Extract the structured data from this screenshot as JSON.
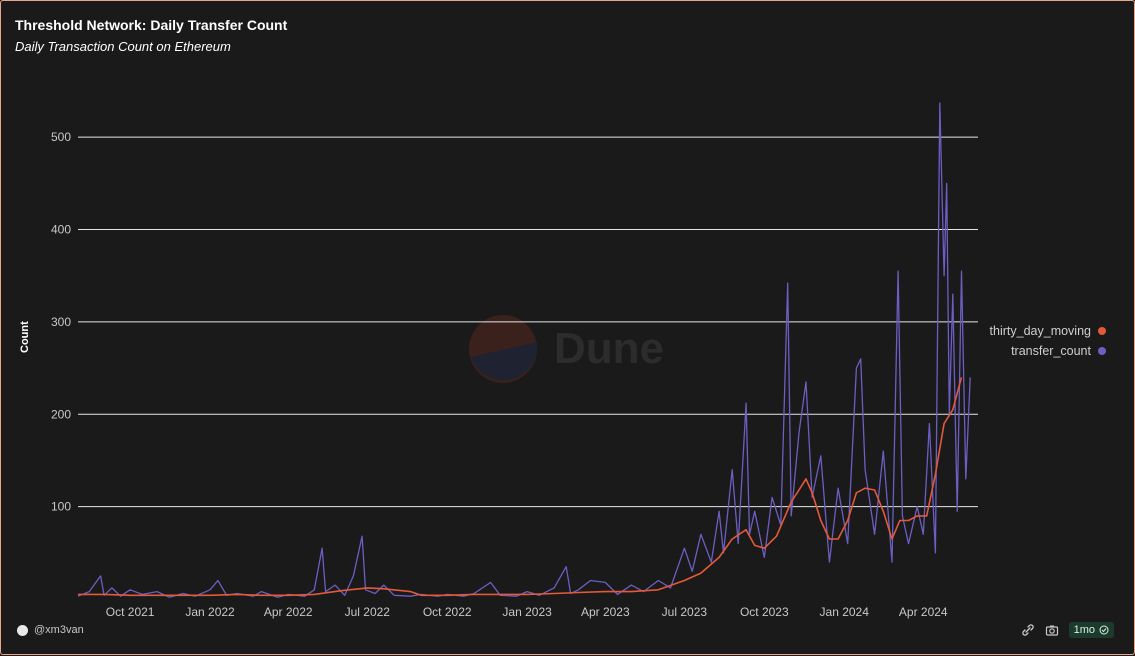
{
  "chart_data": {
    "type": "line",
    "title": "Threshold Network: Daily Transfer Count",
    "subtitle": "Daily Transaction Count on Ethereum",
    "xlabel": "",
    "ylabel": "Count",
    "ylim": [
      0,
      550
    ],
    "yticks": [
      100,
      200,
      300,
      400,
      500
    ],
    "xlim": [
      "2021-08-02",
      "2024-06-03"
    ],
    "xticks": [
      {
        "date": "2021-10-01",
        "label": "Oct 2021"
      },
      {
        "date": "2022-01-01",
        "label": "Jan 2022"
      },
      {
        "date": "2022-04-01",
        "label": "Apr 2022"
      },
      {
        "date": "2022-07-01",
        "label": "Jul 2022"
      },
      {
        "date": "2022-10-01",
        "label": "Oct 2022"
      },
      {
        "date": "2023-01-01",
        "label": "Jan 2023"
      },
      {
        "date": "2023-04-01",
        "label": "Apr 2023"
      },
      {
        "date": "2023-07-01",
        "label": "Jul 2023"
      },
      {
        "date": "2023-10-01",
        "label": "Oct 2023"
      },
      {
        "date": "2024-01-01",
        "label": "Jan 2024"
      },
      {
        "date": "2024-04-01",
        "label": "Apr 2024"
      }
    ],
    "grid": true,
    "legend_position": "right",
    "series": [
      {
        "name": "thirty_day_moving",
        "color": "#e4593a",
        "points": [
          [
            "2021-08-02",
            5
          ],
          [
            "2021-09-01",
            5
          ],
          [
            "2021-10-01",
            4
          ],
          [
            "2021-11-01",
            4
          ],
          [
            "2021-12-01",
            4
          ],
          [
            "2022-01-01",
            4
          ],
          [
            "2022-02-01",
            5
          ],
          [
            "2022-03-01",
            4
          ],
          [
            "2022-04-01",
            4
          ],
          [
            "2022-05-01",
            5
          ],
          [
            "2022-06-01",
            9
          ],
          [
            "2022-07-01",
            12
          ],
          [
            "2022-07-20",
            11
          ],
          [
            "2022-08-20",
            8
          ],
          [
            "2022-09-01",
            4
          ],
          [
            "2022-10-01",
            4
          ],
          [
            "2022-11-01",
            5
          ],
          [
            "2022-12-01",
            5
          ],
          [
            "2023-01-01",
            5
          ],
          [
            "2023-02-01",
            6
          ],
          [
            "2023-03-01",
            7
          ],
          [
            "2023-04-01",
            8
          ],
          [
            "2023-05-01",
            8
          ],
          [
            "2023-06-01",
            10
          ],
          [
            "2023-07-01",
            20
          ],
          [
            "2023-07-20",
            28
          ],
          [
            "2023-08-10",
            45
          ],
          [
            "2023-08-25",
            65
          ],
          [
            "2023-09-10",
            75
          ],
          [
            "2023-09-20",
            58
          ],
          [
            "2023-10-01",
            55
          ],
          [
            "2023-10-15",
            68
          ],
          [
            "2023-11-01",
            105
          ],
          [
            "2023-11-10",
            118
          ],
          [
            "2023-11-18",
            130
          ],
          [
            "2023-11-25",
            115
          ],
          [
            "2023-12-05",
            85
          ],
          [
            "2023-12-15",
            65
          ],
          [
            "2023-12-25",
            65
          ],
          [
            "2024-01-05",
            85
          ],
          [
            "2024-01-15",
            115
          ],
          [
            "2024-01-25",
            120
          ],
          [
            "2024-02-05",
            118
          ],
          [
            "2024-02-15",
            95
          ],
          [
            "2024-02-25",
            65
          ],
          [
            "2024-03-05",
            85
          ],
          [
            "2024-03-15",
            85
          ],
          [
            "2024-03-25",
            90
          ],
          [
            "2024-04-05",
            90
          ],
          [
            "2024-04-15",
            135
          ],
          [
            "2024-04-25",
            190
          ],
          [
            "2024-05-05",
            205
          ],
          [
            "2024-05-15",
            240
          ]
        ]
      },
      {
        "name": "transfer_count",
        "color": "#6b5fc2",
        "points": [
          [
            "2021-08-02",
            3
          ],
          [
            "2021-08-15",
            8
          ],
          [
            "2021-08-28",
            25
          ],
          [
            "2021-09-01",
            4
          ],
          [
            "2021-09-10",
            12
          ],
          [
            "2021-09-20",
            3
          ],
          [
            "2021-10-01",
            10
          ],
          [
            "2021-10-15",
            5
          ],
          [
            "2021-11-01",
            8
          ],
          [
            "2021-11-15",
            2
          ],
          [
            "2021-12-01",
            6
          ],
          [
            "2021-12-15",
            3
          ],
          [
            "2022-01-01",
            10
          ],
          [
            "2022-01-10",
            20
          ],
          [
            "2022-01-20",
            4
          ],
          [
            "2022-02-01",
            6
          ],
          [
            "2022-02-20",
            3
          ],
          [
            "2022-03-01",
            8
          ],
          [
            "2022-03-20",
            2
          ],
          [
            "2022-04-01",
            5
          ],
          [
            "2022-04-20",
            3
          ],
          [
            "2022-05-01",
            10
          ],
          [
            "2022-05-10",
            55
          ],
          [
            "2022-05-14",
            8
          ],
          [
            "2022-05-25",
            15
          ],
          [
            "2022-06-05",
            4
          ],
          [
            "2022-06-15",
            25
          ],
          [
            "2022-06-25",
            68
          ],
          [
            "2022-06-29",
            10
          ],
          [
            "2022-07-10",
            6
          ],
          [
            "2022-07-20",
            15
          ],
          [
            "2022-08-01",
            4
          ],
          [
            "2022-08-20",
            3
          ],
          [
            "2022-09-01",
            5
          ],
          [
            "2022-09-20",
            3
          ],
          [
            "2022-10-01",
            5
          ],
          [
            "2022-10-20",
            3
          ],
          [
            "2022-11-01",
            6
          ],
          [
            "2022-11-20",
            18
          ],
          [
            "2022-12-01",
            4
          ],
          [
            "2022-12-20",
            3
          ],
          [
            "2023-01-01",
            8
          ],
          [
            "2023-01-15",
            4
          ],
          [
            "2023-02-01",
            12
          ],
          [
            "2023-02-15",
            35
          ],
          [
            "2023-02-20",
            6
          ],
          [
            "2023-03-01",
            10
          ],
          [
            "2023-03-15",
            20
          ],
          [
            "2023-04-01",
            18
          ],
          [
            "2023-04-15",
            5
          ],
          [
            "2023-05-01",
            15
          ],
          [
            "2023-05-15",
            8
          ],
          [
            "2023-06-01",
            20
          ],
          [
            "2023-06-15",
            12
          ],
          [
            "2023-07-01",
            55
          ],
          [
            "2023-07-10",
            30
          ],
          [
            "2023-07-20",
            70
          ],
          [
            "2023-08-01",
            40
          ],
          [
            "2023-08-10",
            95
          ],
          [
            "2023-08-15",
            50
          ],
          [
            "2023-08-25",
            140
          ],
          [
            "2023-09-01",
            60
          ],
          [
            "2023-09-10",
            212
          ],
          [
            "2023-09-14",
            70
          ],
          [
            "2023-09-20",
            95
          ],
          [
            "2023-10-01",
            45
          ],
          [
            "2023-10-10",
            110
          ],
          [
            "2023-10-20",
            80
          ],
          [
            "2023-10-28",
            342
          ],
          [
            "2023-11-01",
            90
          ],
          [
            "2023-11-10",
            180
          ],
          [
            "2023-11-18",
            235
          ],
          [
            "2023-11-25",
            110
          ],
          [
            "2023-12-05",
            155
          ],
          [
            "2023-12-15",
            40
          ],
          [
            "2023-12-25",
            120
          ],
          [
            "2024-01-05",
            60
          ],
          [
            "2024-01-15",
            250
          ],
          [
            "2024-01-20",
            260
          ],
          [
            "2024-01-25",
            140
          ],
          [
            "2024-02-05",
            70
          ],
          [
            "2024-02-15",
            160
          ],
          [
            "2024-02-25",
            40
          ],
          [
            "2024-03-03",
            355
          ],
          [
            "2024-03-08",
            90
          ],
          [
            "2024-03-15",
            60
          ],
          [
            "2024-03-25",
            100
          ],
          [
            "2024-04-01",
            70
          ],
          [
            "2024-04-08",
            190
          ],
          [
            "2024-04-15",
            50
          ],
          [
            "2024-04-20",
            537
          ],
          [
            "2024-04-25",
            350
          ],
          [
            "2024-04-28",
            450
          ],
          [
            "2024-05-01",
            200
          ],
          [
            "2024-05-05",
            330
          ],
          [
            "2024-05-10",
            95
          ],
          [
            "2024-05-15",
            355
          ],
          [
            "2024-05-20",
            130
          ],
          [
            "2024-05-25",
            240
          ]
        ]
      }
    ]
  },
  "legend": {
    "items": [
      {
        "label": "thirty_day_moving",
        "color": "#e4593a"
      },
      {
        "label": "transfer_count",
        "color": "#6b5fc2"
      }
    ]
  },
  "watermark": {
    "text": "Dune"
  },
  "footer": {
    "author": "@xm3van",
    "age_badge": "1mo",
    "tools": [
      "link-icon",
      "camera-icon",
      "check-circle-icon"
    ]
  }
}
